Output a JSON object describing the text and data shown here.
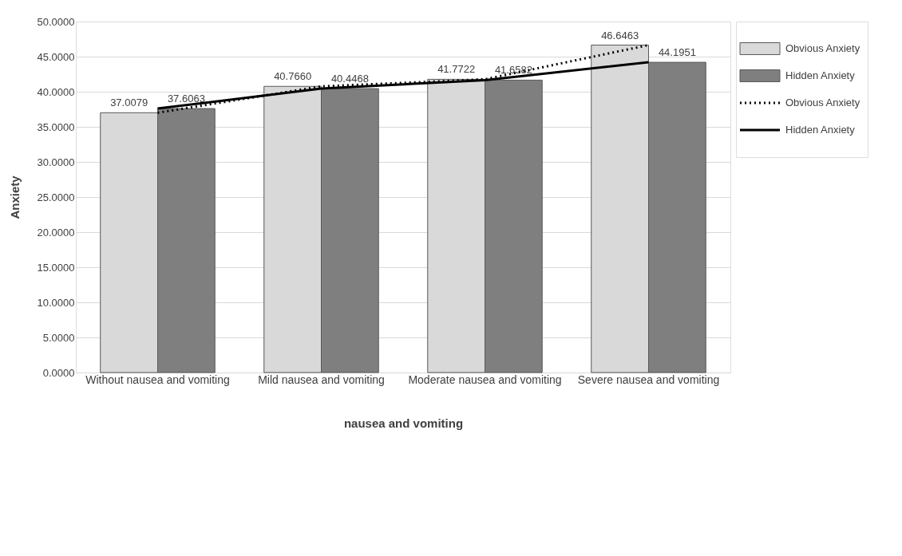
{
  "chart_data": {
    "type": "bar",
    "xlabel": "nausea and vomiting",
    "ylabel": "Anxiety",
    "categories": [
      "Without nausea and vomiting",
      "Mild nausea and vomiting",
      "Moderate  nausea and vomiting",
      "Severe  nausea and vomiting"
    ],
    "series": [
      {
        "name": "Obvious Anxiety",
        "color": "#d9d9d9",
        "values": [
          37.0079,
          40.766,
          41.7722,
          46.6463
        ],
        "value_labels": [
          "37.0079",
          "40.7660",
          "41.7722",
          "46.6463"
        ]
      },
      {
        "name": "Hidden Anxiety",
        "color": "#7f7f7f",
        "values": [
          37.6063,
          40.4468,
          41.6582,
          44.1951
        ],
        "value_labels": [
          "37.6063",
          "40.4468",
          "41.6582",
          "44.1951"
        ]
      },
      {
        "name": "Obvious Anxiety",
        "type": "line",
        "color": "#000000",
        "line_style": "dotted",
        "values": [
          37.0079,
          40.766,
          41.7722,
          46.6463
        ]
      },
      {
        "name": "Hidden Anxiety",
        "type": "line",
        "color": "#000000",
        "line_style": "solid",
        "values": [
          37.6063,
          40.4468,
          41.6582,
          44.1951
        ]
      }
    ],
    "ylim": [
      0,
      50
    ],
    "yticks": [
      {
        "value": 0,
        "label": "0.0000"
      },
      {
        "value": 5,
        "label": "5.0000"
      },
      {
        "value": 10,
        "label": "10.0000"
      },
      {
        "value": 15,
        "label": "15.0000"
      },
      {
        "value": 20,
        "label": "20.0000"
      },
      {
        "value": 25,
        "label": "25.0000"
      },
      {
        "value": 30,
        "label": "30.0000"
      },
      {
        "value": 35,
        "label": "35.0000"
      },
      {
        "value": 40,
        "label": "40.0000"
      },
      {
        "value": 45,
        "label": "45.0000"
      },
      {
        "value": 50,
        "label": "50.0000"
      }
    ],
    "grid": "y",
    "legend": "right",
    "marker": "none"
  }
}
